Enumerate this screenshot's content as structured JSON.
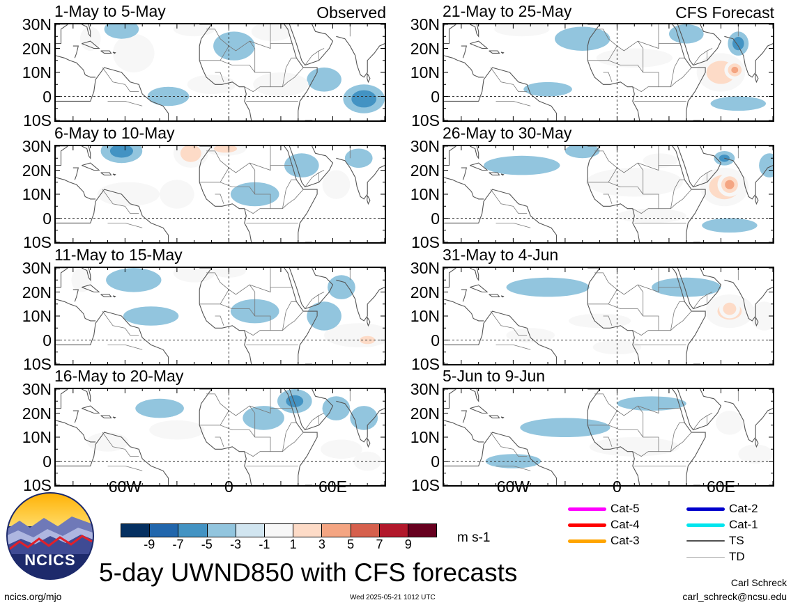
{
  "axis": {
    "y_labels": [
      "30N",
      "20N",
      "10N",
      "0",
      "10S"
    ],
    "x_labels": [
      "60W",
      "0",
      "60E"
    ]
  },
  "panels": [
    {
      "title": "1-May to 5-May",
      "tag": "Observed",
      "blobs": [
        {
          "lon": -55,
          "lat": 18,
          "rx": 12,
          "ry": 8,
          "v": 4
        },
        {
          "lon": -62,
          "lat": 28,
          "rx": 10,
          "ry": 4,
          "v": -5
        },
        {
          "lon": -20,
          "lat": 28,
          "rx": 12,
          "ry": 3,
          "v": 3
        },
        {
          "lon": 3,
          "lat": 21,
          "rx": 12,
          "ry": 6,
          "v": -4
        },
        {
          "lon": 25,
          "lat": 27,
          "rx": 12,
          "ry": 4,
          "v": 3
        },
        {
          "lon": 78,
          "lat": -1,
          "rx": 12,
          "ry": 6,
          "v": -8
        },
        {
          "lon": 55,
          "lat": 7,
          "rx": 10,
          "ry": 5,
          "v": -3
        },
        {
          "lon": -10,
          "lat": 5,
          "rx": 14,
          "ry": 4,
          "v": 2
        },
        {
          "lon": 30,
          "lat": 5,
          "rx": 16,
          "ry": 5,
          "v": 2
        },
        {
          "lon": -80,
          "lat": 24,
          "rx": 6,
          "ry": 5,
          "v": 2
        },
        {
          "lon": -35,
          "lat": 0,
          "rx": 12,
          "ry": 4,
          "v": -2
        }
      ]
    },
    {
      "title": "6-May to 10-May",
      "tag": "",
      "blobs": [
        {
          "lon": -62,
          "lat": 28,
          "rx": 12,
          "ry": 5,
          "v": -7
        },
        {
          "lon": -22,
          "lat": 27,
          "rx": 10,
          "ry": 6,
          "v": 8
        },
        {
          "lon": -2,
          "lat": 29,
          "rx": 12,
          "ry": 3,
          "v": 7
        },
        {
          "lon": 62,
          "lat": 14,
          "rx": 8,
          "ry": 6,
          "v": 5
        },
        {
          "lon": -58,
          "lat": 10,
          "rx": 18,
          "ry": 5,
          "v": 2
        },
        {
          "lon": 15,
          "lat": 10,
          "rx": 14,
          "ry": 5,
          "v": -2
        },
        {
          "lon": 42,
          "lat": 22,
          "rx": 10,
          "ry": 5,
          "v": -3
        },
        {
          "lon": 75,
          "lat": 25,
          "rx": 8,
          "ry": 4,
          "v": -3
        },
        {
          "lon": -30,
          "lat": 10,
          "rx": 10,
          "ry": 6,
          "v": 3
        }
      ]
    },
    {
      "title": "11-May to 15-May",
      "tag": "",
      "blobs": [
        {
          "lon": -85,
          "lat": 25,
          "rx": 6,
          "ry": 5,
          "v": 4
        },
        {
          "lon": -55,
          "lat": 25,
          "rx": 16,
          "ry": 5,
          "v": -3
        },
        {
          "lon": -20,
          "lat": 28,
          "rx": 12,
          "ry": 4,
          "v": 3
        },
        {
          "lon": 0,
          "lat": 29,
          "rx": 10,
          "ry": 3,
          "v": 5
        },
        {
          "lon": 75,
          "lat": 2,
          "rx": 20,
          "ry": 5,
          "v": 4
        },
        {
          "lon": 80,
          "lat": 0,
          "rx": 8,
          "ry": 3,
          "v": 7
        },
        {
          "lon": 55,
          "lat": 10,
          "rx": 10,
          "ry": 6,
          "v": -3
        },
        {
          "lon": 65,
          "lat": 22,
          "rx": 8,
          "ry": 5,
          "v": -5
        },
        {
          "lon": -45,
          "lat": 10,
          "rx": 16,
          "ry": 4,
          "v": -2
        },
        {
          "lon": 15,
          "lat": 12,
          "rx": 14,
          "ry": 5,
          "v": -2
        }
      ]
    },
    {
      "title": "16-May to 20-May",
      "tag": "",
      "blobs": [
        {
          "lon": 38,
          "lat": 25,
          "rx": 10,
          "ry": 5,
          "v": -6
        },
        {
          "lon": 62,
          "lat": 22,
          "rx": 8,
          "ry": 5,
          "v": -4
        },
        {
          "lon": 78,
          "lat": 18,
          "rx": 8,
          "ry": 5,
          "v": -4
        },
        {
          "lon": 80,
          "lat": 0,
          "rx": 8,
          "ry": 4,
          "v": 4
        },
        {
          "lon": 65,
          "lat": 5,
          "rx": 12,
          "ry": 4,
          "v": 3
        },
        {
          "lon": -40,
          "lat": 22,
          "rx": 14,
          "ry": 4,
          "v": -3
        },
        {
          "lon": -30,
          "lat": 13,
          "rx": 16,
          "ry": 4,
          "v": 2
        },
        {
          "lon": 20,
          "lat": 18,
          "rx": 12,
          "ry": 5,
          "v": -3
        },
        {
          "lon": -70,
          "lat": 8,
          "rx": 12,
          "ry": 4,
          "v": 2
        }
      ]
    },
    {
      "title": "21-May to 25-May",
      "tag": "CFS Forecast",
      "blobs": [
        {
          "lon": 60,
          "lat": 10,
          "rx": 14,
          "ry": 8,
          "v": 8
        },
        {
          "lon": 68,
          "lat": 11,
          "rx": 6,
          "ry": 4,
          "v": 10
        },
        {
          "lon": 70,
          "lat": 22,
          "rx": 6,
          "ry": 5,
          "v": -7
        },
        {
          "lon": -55,
          "lat": 28,
          "rx": 16,
          "ry": 3,
          "v": 3
        },
        {
          "lon": -20,
          "lat": 24,
          "rx": 16,
          "ry": 5,
          "v": -3
        },
        {
          "lon": 10,
          "lat": 16,
          "rx": 22,
          "ry": 4,
          "v": 2
        },
        {
          "lon": 40,
          "lat": 26,
          "rx": 10,
          "ry": 4,
          "v": -3
        },
        {
          "lon": 70,
          "lat": -3,
          "rx": 16,
          "ry": 3,
          "v": -3
        },
        {
          "lon": -40,
          "lat": 3,
          "rx": 14,
          "ry": 3,
          "v": -2
        }
      ]
    },
    {
      "title": "26-May to 30-May",
      "tag": "",
      "blobs": [
        {
          "lon": 62,
          "lat": 13,
          "rx": 14,
          "ry": 8,
          "v": 9
        },
        {
          "lon": 65,
          "lat": 14,
          "rx": 7,
          "ry": 5,
          "v": 11
        },
        {
          "lon": 62,
          "lat": 25,
          "rx": 6,
          "ry": 3,
          "v": -6
        },
        {
          "lon": 65,
          "lat": -3,
          "rx": 16,
          "ry": 3,
          "v": -4
        },
        {
          "lon": -55,
          "lat": 22,
          "rx": 22,
          "ry": 4,
          "v": -3
        },
        {
          "lon": 10,
          "lat": 15,
          "rx": 28,
          "ry": 6,
          "v": 3
        },
        {
          "lon": 25,
          "lat": 24,
          "rx": 10,
          "ry": 3,
          "v": 4
        },
        {
          "lon": -20,
          "lat": 28,
          "rx": 10,
          "ry": 3,
          "v": -4
        },
        {
          "lon": 20,
          "lat": 1,
          "rx": 20,
          "ry": 3,
          "v": 2
        },
        {
          "lon": 88,
          "lat": 22,
          "rx": 6,
          "ry": 5,
          "v": -3
        }
      ]
    },
    {
      "title": "31-May to 4-Jun",
      "tag": "",
      "blobs": [
        {
          "lon": 65,
          "lat": 12,
          "rx": 14,
          "ry": 7,
          "v": 6
        },
        {
          "lon": 65,
          "lat": 13,
          "rx": 6,
          "ry": 4,
          "v": 9
        },
        {
          "lon": 85,
          "lat": 10,
          "rx": 8,
          "ry": 6,
          "v": 4
        },
        {
          "lon": -10,
          "lat": 8,
          "rx": 18,
          "ry": 3,
          "v": 3
        },
        {
          "lon": 0,
          "lat": -3,
          "rx": 14,
          "ry": 3,
          "v": 2
        },
        {
          "lon": -40,
          "lat": 22,
          "rx": 24,
          "ry": 4,
          "v": -2
        },
        {
          "lon": 40,
          "lat": 22,
          "rx": 20,
          "ry": 4,
          "v": -2
        },
        {
          "lon": -50,
          "lat": 2,
          "rx": 14,
          "ry": 3,
          "v": 2
        }
      ]
    },
    {
      "title": "5-Jun to 9-Jun",
      "tag": "",
      "blobs": [
        {
          "lon": 65,
          "lat": 16,
          "rx": 8,
          "ry": 5,
          "v": 3
        },
        {
          "lon": 10,
          "lat": 6,
          "rx": 26,
          "ry": 4,
          "v": 2
        },
        {
          "lon": -30,
          "lat": 14,
          "rx": 26,
          "ry": 4,
          "v": -2
        },
        {
          "lon": 20,
          "lat": 24,
          "rx": 20,
          "ry": 3,
          "v": -2
        },
        {
          "lon": 80,
          "lat": 3,
          "rx": 10,
          "ry": 4,
          "v": 2
        },
        {
          "lon": -60,
          "lat": 0,
          "rx": 16,
          "ry": 3,
          "v": -2
        }
      ]
    }
  ],
  "colorbar": {
    "colors": [
      "#053061",
      "#2166ac",
      "#4393c3",
      "#92c5de",
      "#d1e5f0",
      "#f7f7f7",
      "#fddbc7",
      "#f4a582",
      "#d6604d",
      "#b2182b",
      "#67001f"
    ],
    "labels": [
      "-9",
      "-7",
      "-5",
      "-3",
      "-1",
      "1",
      "3",
      "5",
      "7",
      "9"
    ],
    "units": "m s-1"
  },
  "legend": [
    {
      "label": "Cat-5",
      "color": "#ff00ff"
    },
    {
      "label": "Cat-4",
      "color": "#ff0000"
    },
    {
      "label": "Cat-3",
      "color": "#ffa500"
    },
    {
      "label": "Cat-2",
      "color": "#0000cc"
    },
    {
      "label": "Cat-1",
      "color": "#00e5ee"
    },
    {
      "label": "TS",
      "color": "#505050"
    },
    {
      "label": "TD",
      "color": "#aaaaaa"
    }
  ],
  "logo_text": "NCICS",
  "title": "5-day UWND850 with CFS forecasts",
  "footer": {
    "url": "ncics.org/mjo",
    "timestamp": "Wed 2025-05-21 1012 UTC",
    "author": "Carl Schreck",
    "email": "carl_schreck@ncsu.edu"
  }
}
